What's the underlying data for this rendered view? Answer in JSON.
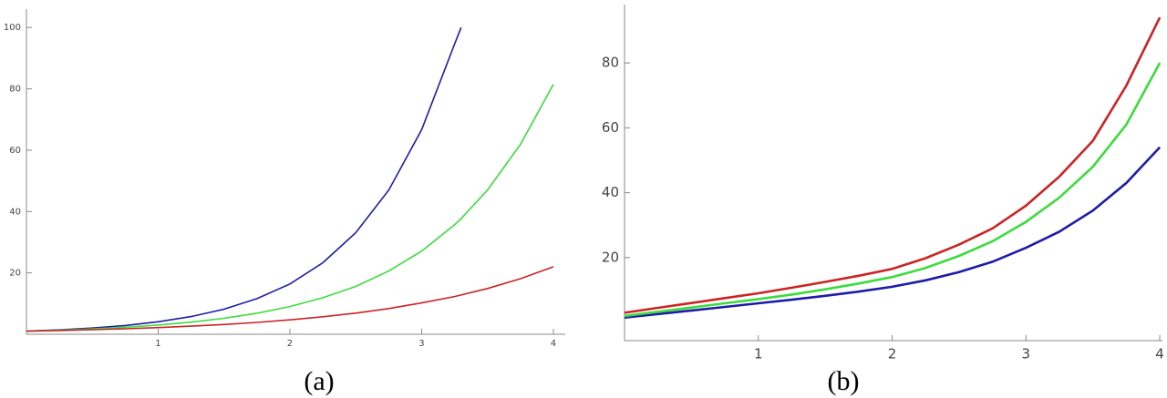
{
  "chart_data": [
    {
      "type": "line",
      "caption": "(a)",
      "x": [
        0,
        0.25,
        0.5,
        0.75,
        1,
        1.25,
        1.5,
        1.75,
        2,
        2.25,
        2.5,
        2.75,
        3,
        3.25,
        3.3,
        3.5,
        3.75,
        4
      ],
      "series": [
        {
          "color": "#1c1ca8",
          "values": [
            1.0,
            1.42,
            2.01,
            2.86,
            4.06,
            5.75,
            8.17,
            11.6,
            16.4,
            23.3,
            33.1,
            47.0,
            66.7,
            94.6,
            100,
            null,
            null,
            null
          ]
        },
        {
          "color": "#3ddc3d",
          "values": [
            1.0,
            1.32,
            1.73,
            2.28,
            3.0,
            3.96,
            5.21,
            6.86,
            9.03,
            11.9,
            15.6,
            20.6,
            27.1,
            35.7,
            37.7,
            47.0,
            61.9,
            81.5
          ]
        },
        {
          "color": "#cc2424",
          "values": [
            1.0,
            1.21,
            1.47,
            1.78,
            2.17,
            2.63,
            3.19,
            3.87,
            4.69,
            5.69,
            6.9,
            8.38,
            10.2,
            12.3,
            12.8,
            14.9,
            18.1,
            22.0
          ]
        }
      ],
      "xlim": [
        0,
        4.09
      ],
      "ylim": [
        0,
        106
      ],
      "xticks": [
        1,
        2,
        3,
        4
      ],
      "yticks": [
        20,
        40,
        60,
        80,
        100
      ]
    },
    {
      "type": "line",
      "caption": "(b)",
      "x": [
        0,
        0.25,
        0.5,
        0.75,
        1,
        1.25,
        1.5,
        1.75,
        2,
        2.25,
        2.5,
        2.75,
        3,
        3.25,
        3.5,
        3.75,
        4
      ],
      "series": [
        {
          "color": "#1c1ca8",
          "values": [
            1.5,
            2.6,
            3.7,
            4.8,
            5.9,
            7,
            8.2,
            9.5,
            11,
            13,
            15.5,
            18.7,
            23,
            28,
            34.5,
            43,
            54
          ]
        },
        {
          "color": "#3ddc3d",
          "values": [
            2,
            3.3,
            4.6,
            5.9,
            7.2,
            8.6,
            10.2,
            12,
            14,
            16.8,
            20.5,
            25,
            31,
            38.5,
            48,
            61,
            80
          ]
        },
        {
          "color": "#cc2424",
          "values": [
            3,
            4.5,
            6,
            7.5,
            9,
            10.7,
            12.5,
            14.4,
            16.5,
            19.8,
            24,
            29,
            36,
            45,
            56,
            73,
            94
          ]
        }
      ],
      "xlim": [
        0,
        4.02
      ],
      "ylim": [
        -5.6,
        98
      ],
      "xticks": [
        1,
        2,
        3,
        4
      ],
      "yticks": [
        20,
        40,
        60,
        80
      ]
    }
  ]
}
